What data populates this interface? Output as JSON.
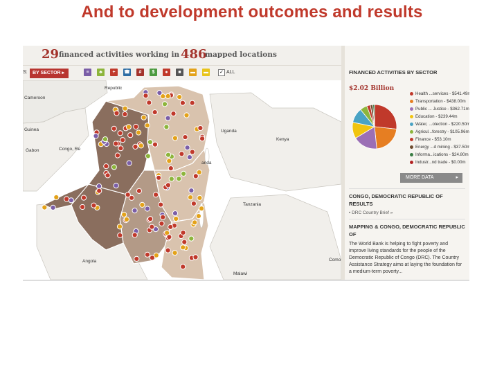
{
  "slide": {
    "title": "And to development outcomes and results"
  },
  "header": {
    "activities_count": "29",
    "activities_text": "financed activities working in",
    "locations_count": "486",
    "locations_text": "mapped locations"
  },
  "toolbar": {
    "left_fragment": "S:",
    "by_sector_label": "BY SECTOR ▸",
    "all_label": "ALL",
    "filter_icons": [
      {
        "name": "public-admin-icon",
        "glyph": "≡",
        "color": "#7b5ea7"
      },
      {
        "name": "agriculture-icon",
        "glyph": "♣",
        "color": "#8db53c"
      },
      {
        "name": "health-icon",
        "glyph": "+",
        "color": "#c0392b"
      },
      {
        "name": "transport-icon",
        "glyph": "☎",
        "color": "#2e6da4"
      },
      {
        "name": "finance-icon",
        "glyph": "#",
        "color": "#a3332c"
      },
      {
        "name": "economy-icon",
        "glyph": "$",
        "color": "#4c9a3f"
      },
      {
        "name": "energy-icon",
        "glyph": "●",
        "color": "#c0392b"
      },
      {
        "name": "water-icon",
        "glyph": "■",
        "color": "#555555"
      },
      {
        "name": "education-icon",
        "glyph": "▬",
        "color": "#e3a21a"
      },
      {
        "name": "info-icon",
        "glyph": "▬",
        "color": "#e8c41a"
      }
    ]
  },
  "map": {
    "labels": {
      "republic": "Republic",
      "cameroon": "Cameroon",
      "guinea": "Guinea",
      "gabon": "Gabon",
      "congo_re": "Congo, Re",
      "uganda": "Uganda",
      "kenya": "Kenya",
      "anda": "anda",
      "tanzania": "Tanzania",
      "angola": "Angola",
      "malawi": "Malawi",
      "como": "Como"
    }
  },
  "panel": {
    "sector_heading": "FINANCED ACTIVITIES BY SECTOR",
    "total": "$2.02 Billion",
    "legend": [
      {
        "label": "Health ...services - $541.49m",
        "color": "#c0392b"
      },
      {
        "label": "Transportation - $438.00m",
        "color": "#e67e22"
      },
      {
        "label": "Public ... Justice - $362.71m",
        "color": "#9b6fb5"
      },
      {
        "label": "Education - $239.44m",
        "color": "#f1c40f"
      },
      {
        "label": "Water, ...otection - $220.50m",
        "color": "#4aa3c4"
      },
      {
        "label": "Agricul...forestry - $105.96m",
        "color": "#8db53c"
      },
      {
        "label": "Finance - $53.10m",
        "color": "#c0392b"
      },
      {
        "label": "Energy ...d mining - $37.50m",
        "color": "#6d4c2f"
      },
      {
        "label": "Informa...ications - $24.80m",
        "color": "#3a7d44"
      },
      {
        "label": "Industr...nd trade - $0.00m",
        "color": "#b22222"
      }
    ],
    "more_data_label": "MORE DATA",
    "more_data_arrow": "▸",
    "results_heading": "CONGO, DEMOCRATIC REPUBLIC OF RESULTS",
    "brief_link": "•  DRC Country Brief »",
    "mapping_heading": "MAPPING & CONGO, DEMOCRATIC REPUBLIC OF",
    "description": "The World Bank is helping to fight poverty and improve living standards for the people of the Democratic Republic of Congo (DRC). The Country Assistance Strategy aims at laying the foundation for a medium-term poverty..."
  },
  "colors": {
    "title_red": "#c0392b",
    "accent_red": "#a3332c",
    "province_dark": "#8a6e5e",
    "province_light": "#d9c3ae"
  }
}
